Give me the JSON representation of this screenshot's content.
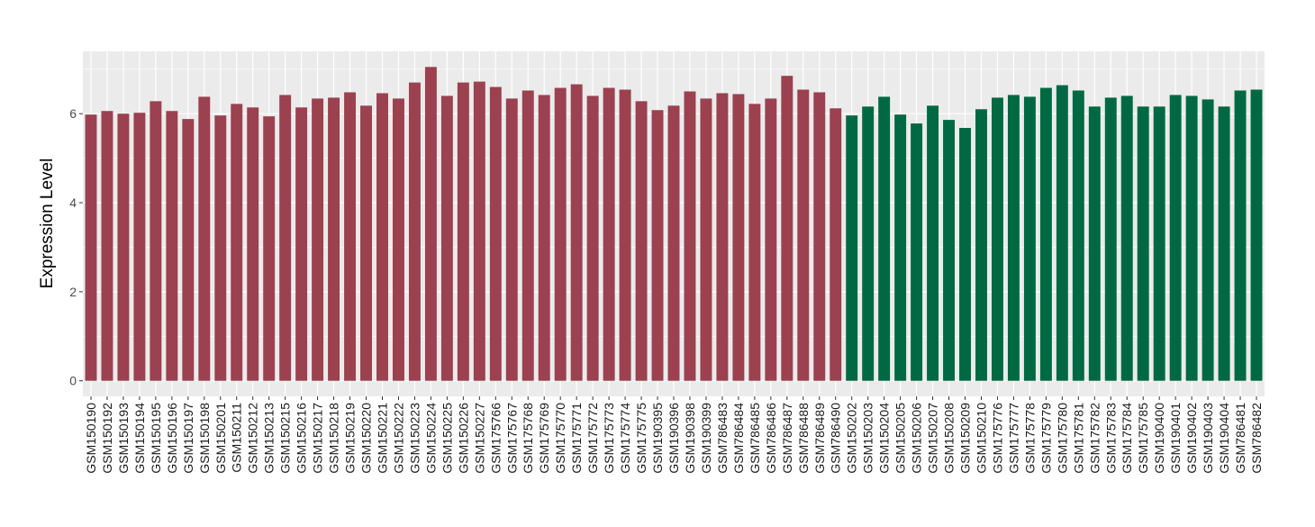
{
  "chart_data": {
    "type": "bar",
    "title": "",
    "xlabel": "",
    "ylabel": "Expression Level",
    "ylim": [
      -0.35,
      7.4
    ],
    "yticks": [
      0,
      2,
      4,
      6
    ],
    "grid": true,
    "legend": "none",
    "colors": {
      "group1": "#9b4150",
      "group2": "#006944",
      "panel": "#ebebeb",
      "grid": "#ffffff"
    },
    "categories": [
      "GSM150190",
      "GSM150192",
      "GSM150193",
      "GSM150194",
      "GSM150195",
      "GSM150196",
      "GSM150197",
      "GSM150198",
      "GSM150201",
      "GSM150211",
      "GSM150212",
      "GSM150213",
      "GSM150215",
      "GSM150216",
      "GSM150217",
      "GSM150218",
      "GSM150219",
      "GSM150220",
      "GSM150221",
      "GSM150222",
      "GSM150223",
      "GSM150224",
      "GSM150225",
      "GSM150226",
      "GSM150227",
      "GSM175766",
      "GSM175767",
      "GSM175768",
      "GSM175769",
      "GSM175770",
      "GSM175771",
      "GSM175772",
      "GSM175773",
      "GSM175774",
      "GSM175775",
      "GSM190395",
      "GSM190396",
      "GSM190398",
      "GSM190399",
      "GSM786483",
      "GSM786484",
      "GSM786485",
      "GSM786486",
      "GSM786487",
      "GSM786488",
      "GSM786489",
      "GSM786490",
      "GSM150202",
      "GSM150203",
      "GSM150204",
      "GSM150205",
      "GSM150206",
      "GSM150207",
      "GSM150208",
      "GSM150209",
      "GSM150210",
      "GSM175776",
      "GSM175777",
      "GSM175778",
      "GSM175779",
      "GSM175780",
      "GSM175781",
      "GSM175782",
      "GSM175783",
      "GSM175784",
      "GSM175785",
      "GSM190400",
      "GSM190401",
      "GSM190402",
      "GSM190403",
      "GSM190404",
      "GSM786481",
      "GSM786482"
    ],
    "values": [
      5.98,
      6.06,
      6.0,
      6.02,
      6.28,
      6.06,
      5.88,
      6.38,
      5.96,
      6.22,
      6.14,
      5.94,
      6.42,
      6.14,
      6.34,
      6.36,
      6.48,
      6.18,
      6.46,
      6.34,
      6.7,
      7.05,
      6.4,
      6.7,
      6.72,
      6.6,
      6.34,
      6.52,
      6.42,
      6.58,
      6.66,
      6.4,
      6.58,
      6.54,
      6.28,
      6.08,
      6.18,
      6.5,
      6.34,
      6.46,
      6.44,
      6.22,
      6.34,
      6.85,
      6.54,
      6.48,
      6.12,
      5.96,
      6.16,
      6.38,
      5.98,
      5.78,
      6.18,
      5.86,
      5.68,
      6.1,
      6.36,
      6.42,
      6.38,
      6.58,
      6.64,
      6.52,
      6.16,
      6.36,
      6.4,
      6.16,
      6.16,
      6.42,
      6.4,
      6.32,
      6.16,
      6.52,
      6.54
    ],
    "groups": [
      1,
      1,
      1,
      1,
      1,
      1,
      1,
      1,
      1,
      1,
      1,
      1,
      1,
      1,
      1,
      1,
      1,
      1,
      1,
      1,
      1,
      1,
      1,
      1,
      1,
      1,
      1,
      1,
      1,
      1,
      1,
      1,
      1,
      1,
      1,
      1,
      1,
      1,
      1,
      1,
      1,
      1,
      1,
      1,
      1,
      1,
      1,
      2,
      2,
      2,
      2,
      2,
      2,
      2,
      2,
      2,
      2,
      2,
      2,
      2,
      2,
      2,
      2,
      2,
      2,
      2,
      2,
      2,
      2,
      2,
      2,
      2,
      2
    ]
  }
}
